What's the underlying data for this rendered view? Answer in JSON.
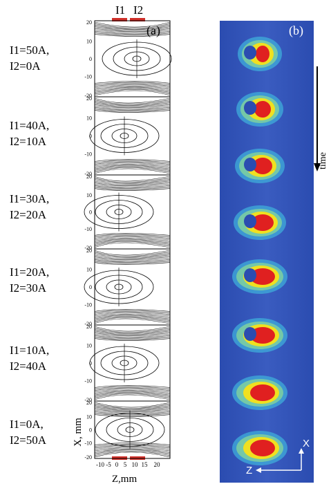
{
  "figure": {
    "panel_a_letter": "(a)",
    "panel_b_letter": "(b)",
    "top_currents": [
      "I1",
      "I2"
    ],
    "y_axis_label": "X, mm",
    "x_axis_label": "Z,mm",
    "y_ticks": [
      "20",
      "10",
      "0",
      "-10",
      "-20"
    ],
    "x_ticks": [
      "-10",
      "-5",
      "0",
      "5",
      "10",
      "15",
      "20"
    ],
    "time_label": "time",
    "axis_x_arrow": "X",
    "axis_z_arrow": "Z"
  },
  "rows": [
    {
      "i1": "I1=50A,",
      "i2": "I2=0A"
    },
    {
      "i1": "I1=40A,",
      "i2": "I2=10A"
    },
    {
      "i1": "I1=30A,",
      "i2": "I2=20A"
    },
    {
      "i1": "I1=20A,",
      "i2": "I2=30A"
    },
    {
      "i1": "I1=10A,",
      "i2": "I2=40A"
    },
    {
      "i1": "I1=0A,",
      "i2": "I2=50A"
    }
  ],
  "colors": {
    "coil": "#d0302a",
    "beam_blue": "#2b4cb0",
    "beam_red": "#e02020",
    "beam_yellow": "#f0e020"
  }
}
